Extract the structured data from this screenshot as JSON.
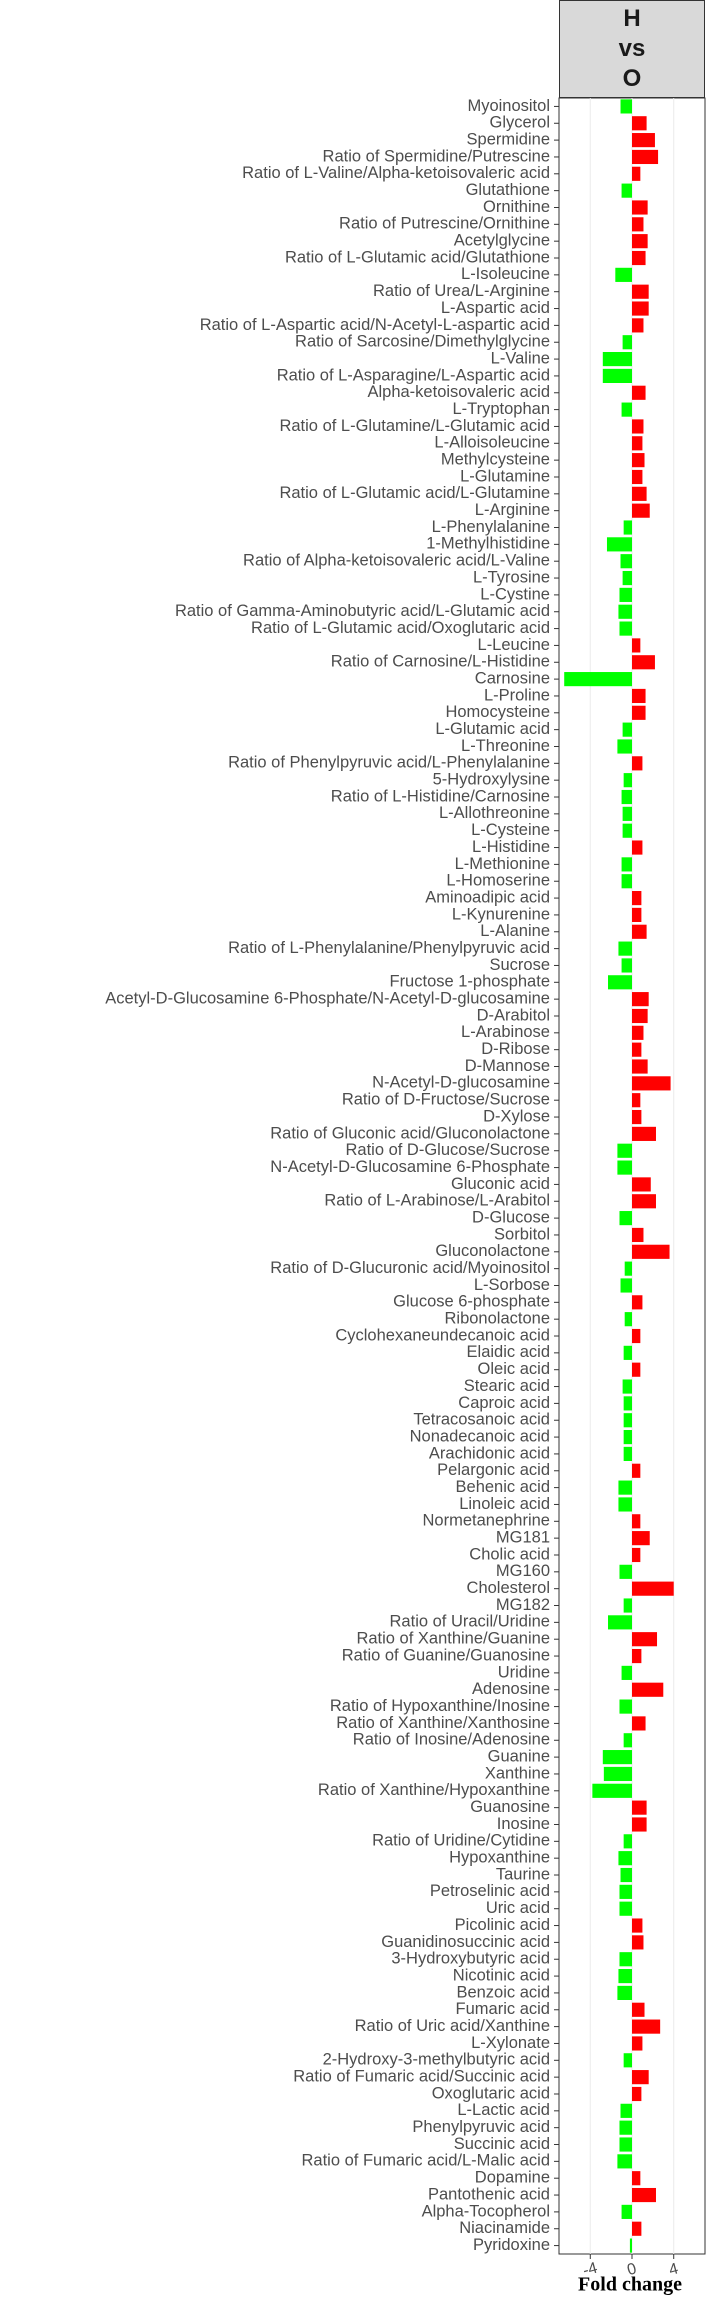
{
  "chart_data": {
    "type": "barh",
    "strip": "H vs O",
    "xlabel": "Fold change",
    "xlim": [
      -7,
      7
    ],
    "xticks": [
      -4,
      0,
      4
    ],
    "grid": true,
    "positive_color": "#ff0000",
    "negative_color": "#00ff00",
    "categories": [
      "Myoinositol",
      "Glycerol",
      "Spermidine",
      "Ratio of Spermidine/Putrescine",
      "Ratio of L-Valine/Alpha-ketoisovaleric acid",
      "Glutathione",
      "Ornithine",
      "Ratio of Putrescine/Ornithine",
      "Acetylglycine",
      "Ratio of L-Glutamic acid/Glutathione",
      "L-Isoleucine",
      "Ratio of Urea/L-Arginine",
      "L-Aspartic acid",
      "Ratio of L-Aspartic acid/N-Acetyl-L-aspartic acid",
      "Ratio of Sarcosine/Dimethylglycine",
      "L-Valine",
      "Ratio of L-Asparagine/L-Aspartic acid",
      "Alpha-ketoisovaleric acid",
      "L-Tryptophan",
      "Ratio of L-Glutamine/L-Glutamic acid",
      "L-Alloisoleucine",
      "Methylcysteine",
      "L-Glutamine",
      "Ratio of L-Glutamic acid/L-Glutamine",
      "L-Arginine",
      "L-Phenylalanine",
      "1-Methylhistidine",
      "Ratio of Alpha-ketoisovaleric acid/L-Valine",
      "L-Tyrosine",
      "L-Cystine",
      "Ratio of Gamma-Aminobutyric acid/L-Glutamic acid",
      "Ratio of L-Glutamic acid/Oxoglutaric acid",
      "L-Leucine",
      "Ratio of Carnosine/L-Histidine",
      "Carnosine",
      "L-Proline",
      "Homocysteine",
      "L-Glutamic acid",
      "L-Threonine",
      "Ratio of Phenylpyruvic acid/L-Phenylalanine",
      "5-Hydroxylysine",
      "Ratio of L-Histidine/Carnosine",
      "L-Allothreonine",
      "L-Cysteine",
      "L-Histidine",
      "L-Methionine",
      "L-Homoserine",
      "Aminoadipic acid",
      "L-Kynurenine",
      "L-Alanine",
      "Ratio of L-Phenylalanine/Phenylpyruvic acid",
      "Sucrose",
      "Fructose 1-phosphate",
      "Acetyl-D-Glucosamine 6-Phosphate/N-Acetyl-D-glucosamine",
      "D-Arabitol",
      "L-Arabinose",
      "D-Ribose",
      "D-Mannose",
      "N-Acetyl-D-glucosamine",
      "Ratio of D-Fructose/Sucrose",
      "D-Xylose",
      "Ratio of Gluconic acid/Gluconolactone",
      "Ratio of D-Glucose/Sucrose",
      "N-Acetyl-D-Glucosamine 6-Phosphate",
      "Gluconic acid",
      "Ratio of L-Arabinose/L-Arabitol",
      "D-Glucose",
      "Sorbitol",
      "Gluconolactone",
      "Ratio of D-Glucuronic acid/Myoinositol",
      "L-Sorbose",
      "Glucose 6-phosphate",
      "Ribonolactone",
      "Cyclohexaneundecanoic acid",
      "Elaidic acid",
      "Oleic acid",
      "Stearic acid",
      "Caproic acid",
      "Tetracosanoic acid",
      "Nonadecanoic acid",
      "Arachidonic acid",
      "Pelargonic acid",
      "Behenic acid",
      "Linoleic acid",
      "Normetanephrine",
      "MG181",
      "Cholic acid",
      "MG160",
      "Cholesterol",
      "MG182",
      "Ratio of Uracil/Uridine",
      "Ratio of Xanthine/Guanine",
      "Ratio of Guanine/Guanosine",
      "Uridine",
      "Adenosine",
      "Ratio of Hypoxanthine/Inosine",
      "Ratio of Xanthine/Xanthosine",
      "Ratio of Inosine/Adenosine",
      "Guanine",
      "Xanthine",
      "Ratio of Xanthine/Hypoxanthine",
      "Guanosine",
      "Inosine",
      "Ratio of Uridine/Cytidine",
      "Hypoxanthine",
      "Taurine",
      "Petroselinic acid",
      "Uric acid",
      "Picolinic acid",
      "Guanidinosuccinic acid",
      "3-Hydroxybutyric acid",
      "Nicotinic acid",
      "Benzoic acid",
      "Fumaric acid",
      "Ratio of Uric acid/Xanthine",
      "L-Xylonate",
      "2-Hydroxy-3-methylbutyric acid",
      "Ratio of Fumaric acid/Succinic acid",
      "Oxoglutaric acid",
      "L-Lactic acid",
      "Phenylpyruvic acid",
      "Succinic acid",
      "Ratio of Fumaric acid/L-Malic acid",
      "Dopamine",
      "Pantothenic acid",
      "Alpha-Tocopherol",
      "Niacinamide",
      "Pyridoxine"
    ],
    "values": [
      -1.1,
      1.4,
      2.2,
      2.5,
      0.8,
      -1.0,
      1.5,
      1.1,
      1.5,
      1.3,
      -1.6,
      1.6,
      1.6,
      1.1,
      -0.9,
      -2.8,
      -2.8,
      1.3,
      -1.0,
      1.1,
      1.0,
      1.2,
      1.0,
      1.4,
      1.7,
      -0.8,
      -2.4,
      -1.1,
      -0.9,
      -1.2,
      -1.3,
      -1.2,
      0.8,
      2.2,
      -6.5,
      1.3,
      1.3,
      -0.9,
      -1.4,
      1.0,
      -0.8,
      -1.0,
      -0.9,
      -0.9,
      1.0,
      -1.0,
      -1.0,
      0.9,
      0.9,
      1.4,
      -1.3,
      -1.0,
      -2.3,
      1.6,
      1.5,
      1.1,
      0.9,
      1.5,
      3.7,
      0.8,
      0.9,
      2.3,
      -1.4,
      -1.4,
      1.8,
      2.3,
      -1.2,
      1.1,
      3.6,
      -0.7,
      -1.1,
      1.0,
      -0.7,
      0.8,
      -0.8,
      0.8,
      -0.9,
      -0.8,
      -0.8,
      -0.8,
      -0.8,
      0.8,
      -1.3,
      -1.3,
      0.8,
      1.7,
      0.8,
      -1.2,
      4.0,
      -0.8,
      -2.3,
      2.4,
      0.9,
      -1.0,
      3.0,
      -1.2,
      1.3,
      -0.8,
      -2.8,
      -2.7,
      -3.8,
      1.4,
      1.4,
      -0.8,
      -1.3,
      -1.1,
      -1.2,
      -1.2,
      1.0,
      1.1,
      -1.2,
      -1.3,
      -1.4,
      1.2,
      2.7,
      1.0,
      -0.8,
      1.6,
      0.9,
      -1.1,
      -1.2,
      -1.2,
      -1.4,
      0.8,
      2.3,
      -1.0,
      0.9,
      -0.2
    ]
  }
}
